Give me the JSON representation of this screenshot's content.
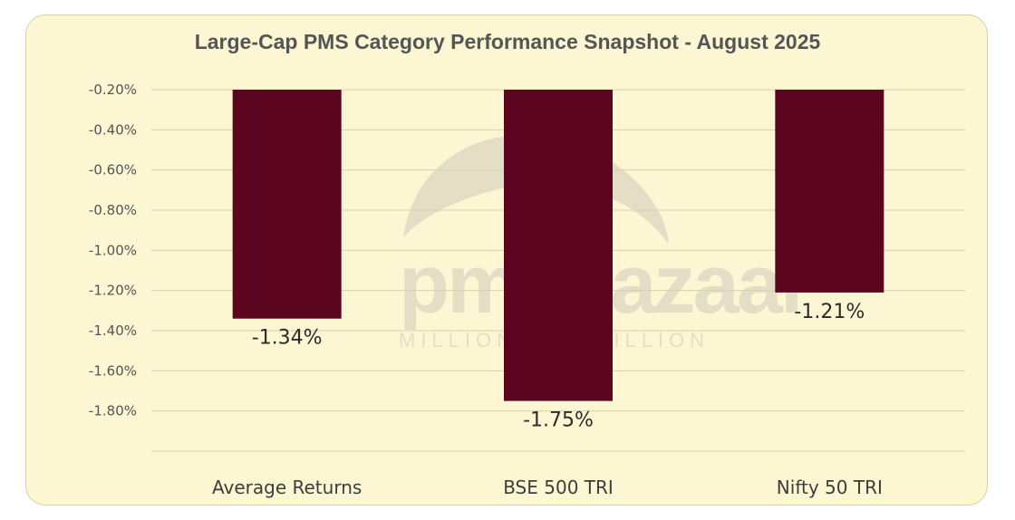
{
  "chart_data": {
    "type": "bar",
    "title": "Large-Cap PMS Category Performance Snapshot - August 2025",
    "categories": [
      "Average Returns",
      "BSE 500 TRI",
      "Nifty 50 TRI"
    ],
    "values": [
      -1.34,
      -1.75,
      -1.21
    ],
    "value_labels": [
      "-1.34%",
      "-1.75%",
      "-1.21%"
    ],
    "y_ticks": [
      "-0.20%",
      "-0.40%",
      "-0.60%",
      "-0.80%",
      "-1.00%",
      "-1.20%",
      "-1.40%",
      "-1.60%",
      "-1.80%"
    ],
    "ylim": [
      -1.8,
      -0.2
    ],
    "grid": true,
    "bar_color": "#5c0521",
    "background_color": "#fdf6d3",
    "watermark": "pmsbazaar MILLIONS TO BILLION"
  }
}
